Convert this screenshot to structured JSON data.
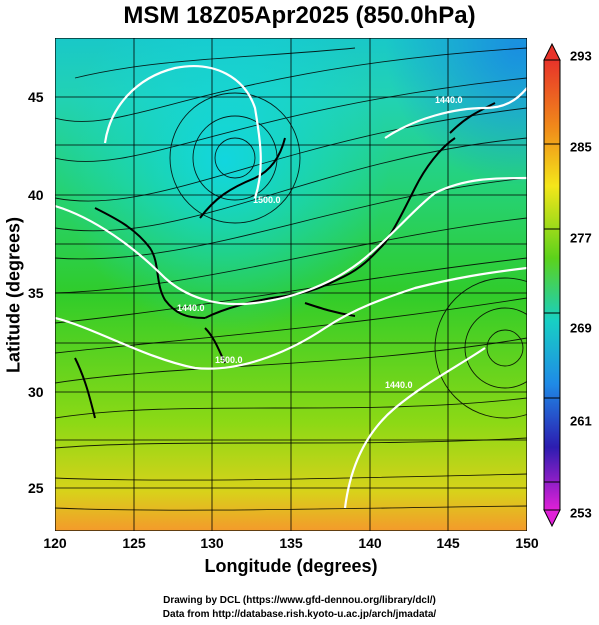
{
  "title": "MSM 18Z05Apr2025 (850.0hPa)",
  "axes": {
    "xlabel": "Longitude (degrees)",
    "ylabel": "Latitude  (degrees)",
    "xticks": [
      "120",
      "125",
      "130",
      "135",
      "140",
      "145",
      "150"
    ],
    "yticks": [
      "45",
      "40",
      "35",
      "30",
      "25"
    ],
    "xlim": [
      120,
      150
    ],
    "ylim": [
      22.5,
      47.6
    ]
  },
  "colorbar": {
    "labels": [
      "293",
      "285",
      "277",
      "269",
      "261",
      "253"
    ],
    "range": [
      253,
      293
    ]
  },
  "contours": {
    "labels": [
      "1440.0",
      "1500.0",
      "1440.0",
      "1500.0",
      "1440.0"
    ]
  },
  "credits": {
    "line1": "Drawing by DCL (https://www.gfd-dennou.org/library/dcl/)",
    "line2": "Data from http://database.rish.kyoto-u.ac.jp/arch/jmadata/"
  },
  "colors": {
    "warm": "#ff6a00",
    "mid": "#34d11b",
    "cool": "#16d0d8",
    "contour": "#ffffff"
  }
}
